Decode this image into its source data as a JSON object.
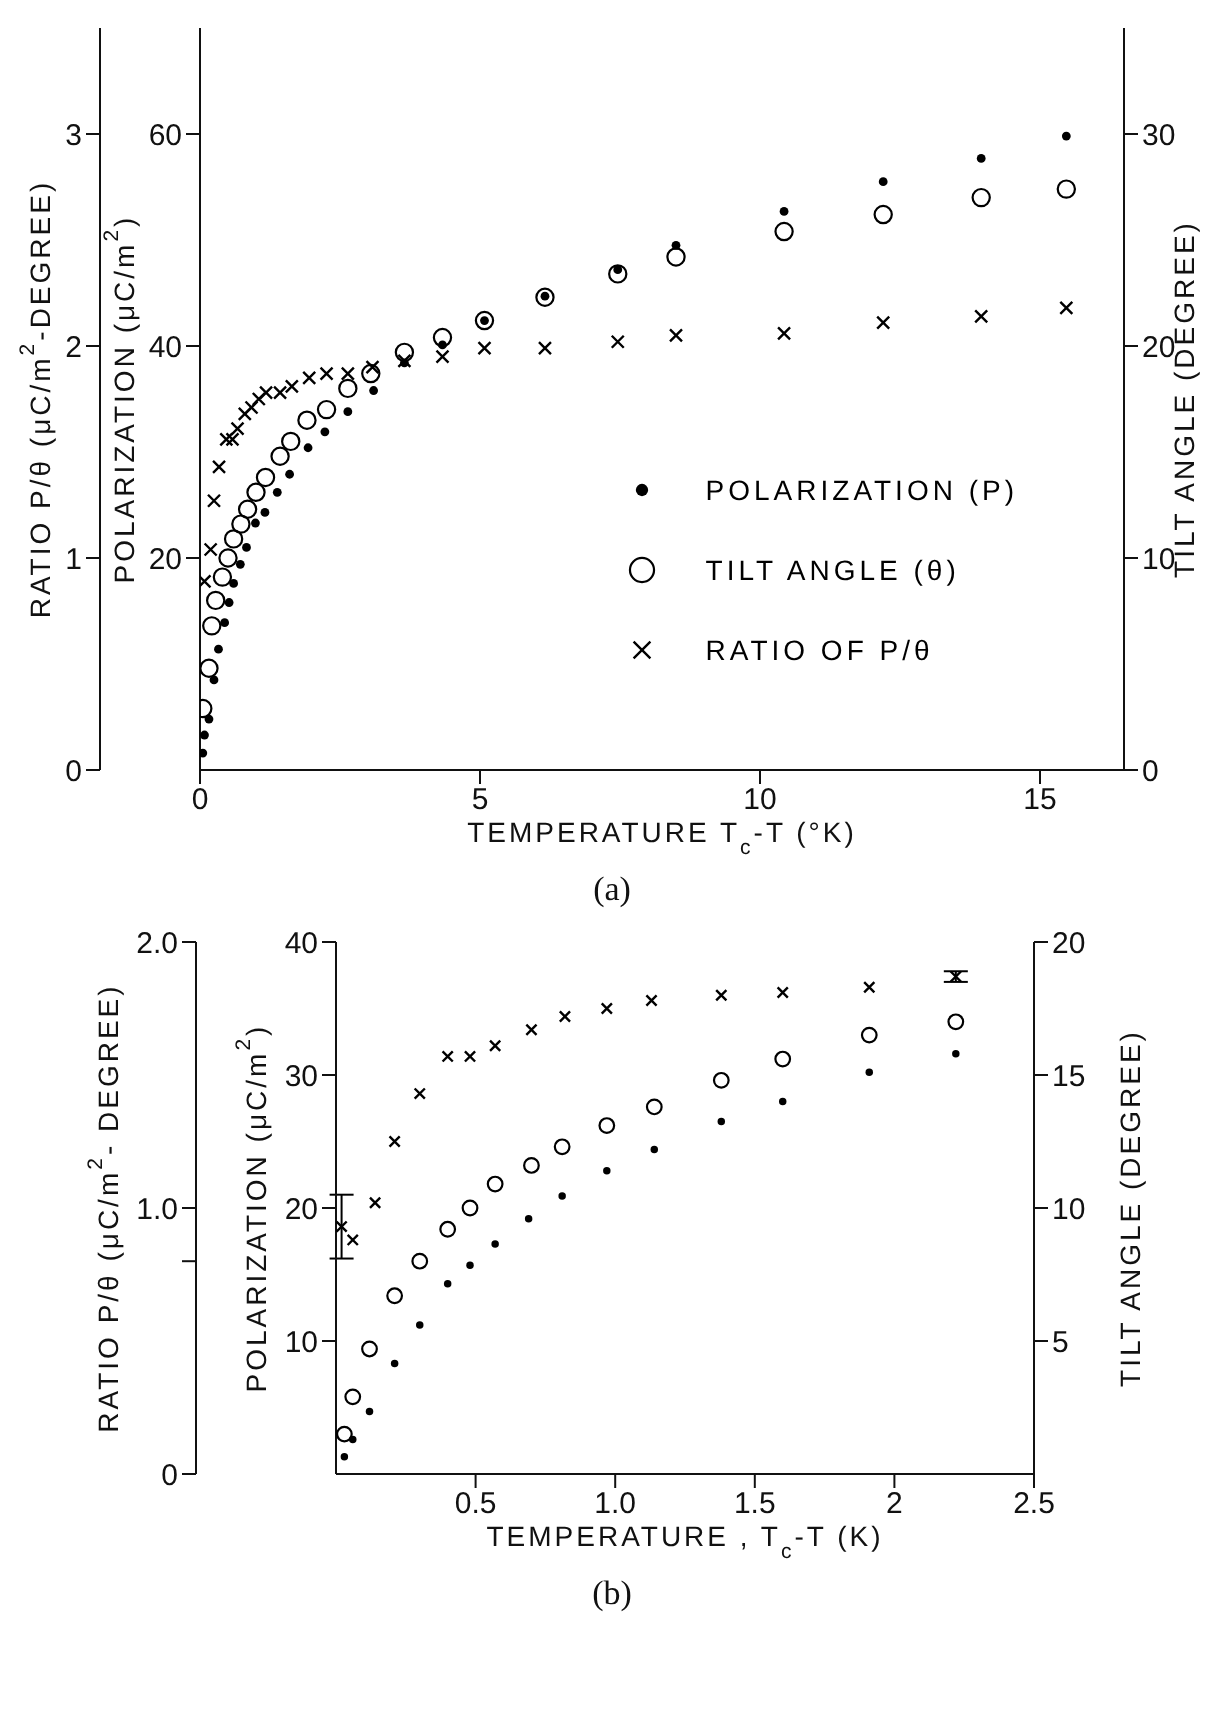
{
  "chart_data": [
    {
      "type": "scatter",
      "title": "(a)",
      "xlabel": "TEMPERATURE T$_{c}$-T (°K)",
      "ylabel": "POLARIZATION (μC/m$^{2}$)",
      "y2label": "TILT ANGLE (DEGREE)",
      "y3label": "RATIO P/θ (μC/m$^{2}$-DEGREE)",
      "xlim": [
        0,
        16.5
      ],
      "xticks": [
        0,
        5,
        10,
        15
      ],
      "ylim": [
        0,
        70
      ],
      "yticks": [
        20,
        40,
        60
      ],
      "y2lim": [
        0,
        35
      ],
      "y2ticks": [
        0,
        10,
        20,
        30
      ],
      "y3lim": [
        0,
        3.5
      ],
      "y3ticks": [
        0,
        1,
        2,
        3
      ],
      "legend": "bottom right",
      "series": [
        {
          "name": "POLARIZATION (P)",
          "color": "#000000",
          "marker": "circle",
          "x": [
            0.05,
            0.08,
            0.16,
            0.25,
            0.33,
            0.44,
            0.52,
            0.6,
            0.72,
            0.83,
            0.99,
            1.16,
            1.38,
            1.6,
            1.93,
            2.23,
            2.64,
            3.1,
            3.65,
            4.33,
            5.08,
            6.16,
            7.46,
            8.5,
            10.43,
            12.2,
            13.95,
            15.47
          ],
          "values": [
            1.6,
            3.3,
            4.8,
            8.5,
            11.4,
            13.9,
            15.8,
            17.6,
            19.4,
            21.0,
            23.3,
            24.3,
            26.2,
            27.9,
            30.4,
            31.9,
            33.8,
            35.8,
            38.4,
            40.1,
            42.4,
            44.7,
            47.2,
            49.5,
            52.7,
            55.5,
            57.7,
            59.8
          ]
        },
        {
          "name": "TILT ANGLE (θ)",
          "color": "#000000",
          "marker": "circle",
          "axis": "y2",
          "x": [
            0.05,
            0.16,
            0.21,
            0.28,
            0.4,
            0.5,
            0.6,
            0.73,
            0.85,
            1.0,
            1.17,
            1.43,
            1.62,
            1.91,
            2.26,
            2.64,
            3.05,
            3.65,
            4.33,
            5.08,
            6.16,
            7.46,
            8.5,
            10.43,
            12.2,
            13.95,
            15.47
          ],
          "values": [
            2.9,
            4.8,
            6.8,
            8.0,
            9.1,
            10.0,
            10.9,
            11.6,
            12.3,
            13.1,
            13.8,
            14.8,
            15.5,
            16.5,
            17.0,
            18.0,
            18.7,
            19.7,
            20.4,
            21.2,
            22.3,
            23.4,
            24.2,
            25.4,
            26.2,
            27.0,
            27.4
          ]
        },
        {
          "name": "RATIO OF P/θ",
          "color": "#000000",
          "marker": "cross",
          "axis": "y3",
          "x": [
            0.08,
            0.19,
            0.25,
            0.34,
            0.47,
            0.58,
            0.67,
            0.8,
            0.92,
            1.05,
            1.18,
            1.43,
            1.64,
            1.95,
            2.26,
            2.64,
            3.08,
            3.65,
            4.33,
            5.08,
            6.16,
            7.46,
            8.5,
            10.43,
            12.2,
            13.95,
            15.47
          ],
          "values": [
            0.89,
            1.04,
            1.27,
            1.43,
            1.56,
            1.56,
            1.61,
            1.68,
            1.71,
            1.75,
            1.78,
            1.78,
            1.81,
            1.85,
            1.87,
            1.87,
            1.9,
            1.93,
            1.95,
            1.99,
            1.99,
            2.02,
            2.05,
            2.06,
            2.11,
            2.14,
            2.18
          ]
        }
      ]
    },
    {
      "type": "scatter",
      "title": "(b)",
      "xlabel": "TEMPERATURE , T$_{c}$-T (K)",
      "ylabel": "POLARIZATION (μC/m$^{2}$)",
      "y2label": "TILT ANGLE (DEGREE)",
      "y3label": "RATIO P/θ (μC/m$^{2}$- DEGREE)",
      "xlim": [
        0,
        2.5
      ],
      "xticks": [
        0.5,
        {
          "value": 1,
          "label": "1.0"
        },
        1.5,
        2,
        2.5
      ],
      "ylim": [
        0,
        40
      ],
      "yticks": [
        10,
        20,
        30,
        40
      ],
      "y2lim": [
        0,
        20
      ],
      "y2ticks": [
        5,
        10,
        15,
        20
      ],
      "y3lim": [
        0,
        2
      ],
      "y3ticks": [
        0,
        {
          "value": 0.8,
          "label": null
        },
        {
          "value": 1,
          "label": "1.0"
        },
        {
          "value": 2,
          "label": "2.0"
        }
      ],
      "series": [
        {
          "color": "#000000",
          "marker": "circle",
          "x": [
            0.03,
            0.06,
            0.12,
            0.21,
            0.3,
            0.4,
            0.48,
            0.57,
            0.69,
            0.81,
            0.97,
            1.14,
            1.38,
            1.6,
            1.91,
            2.22
          ],
          "values": [
            1.3,
            2.6,
            4.7,
            8.3,
            11.2,
            14.3,
            15.7,
            17.3,
            19.2,
            20.9,
            22.8,
            24.4,
            26.5,
            28.0,
            30.2,
            31.6
          ]
        },
        {
          "color": "#000000",
          "marker": "circle",
          "axis": "y2",
          "x": [
            0.03,
            0.06,
            0.12,
            0.21,
            0.3,
            0.4,
            0.48,
            0.57,
            0.7,
            0.81,
            0.97,
            1.14,
            1.38,
            1.6,
            1.91,
            2.22
          ],
          "values": [
            1.5,
            2.9,
            4.7,
            6.7,
            8.0,
            9.2,
            10.0,
            10.9,
            11.6,
            12.3,
            13.1,
            13.8,
            14.8,
            15.6,
            16.5,
            17.0
          ]
        },
        {
          "color": "#000000",
          "marker": "cross",
          "axis": "y3",
          "x": [
            0.02,
            0.06,
            0.14,
            0.21,
            0.3,
            0.4,
            0.48,
            0.57,
            0.7,
            0.82,
            0.97,
            1.13,
            1.38,
            1.6,
            1.91,
            2.22
          ],
          "values": [
            0.93,
            0.88,
            1.02,
            1.25,
            1.43,
            1.57,
            1.57,
            1.61,
            1.67,
            1.72,
            1.75,
            1.78,
            1.8,
            1.81,
            1.83,
            1.87
          ],
          "errors": [
            [
              0.81,
              1.05
            ],
            null,
            null,
            null,
            null,
            null,
            null,
            null,
            null,
            null,
            null,
            null,
            null,
            null,
            null,
            [
              1.85,
              1.89
            ]
          ]
        }
      ]
    }
  ]
}
